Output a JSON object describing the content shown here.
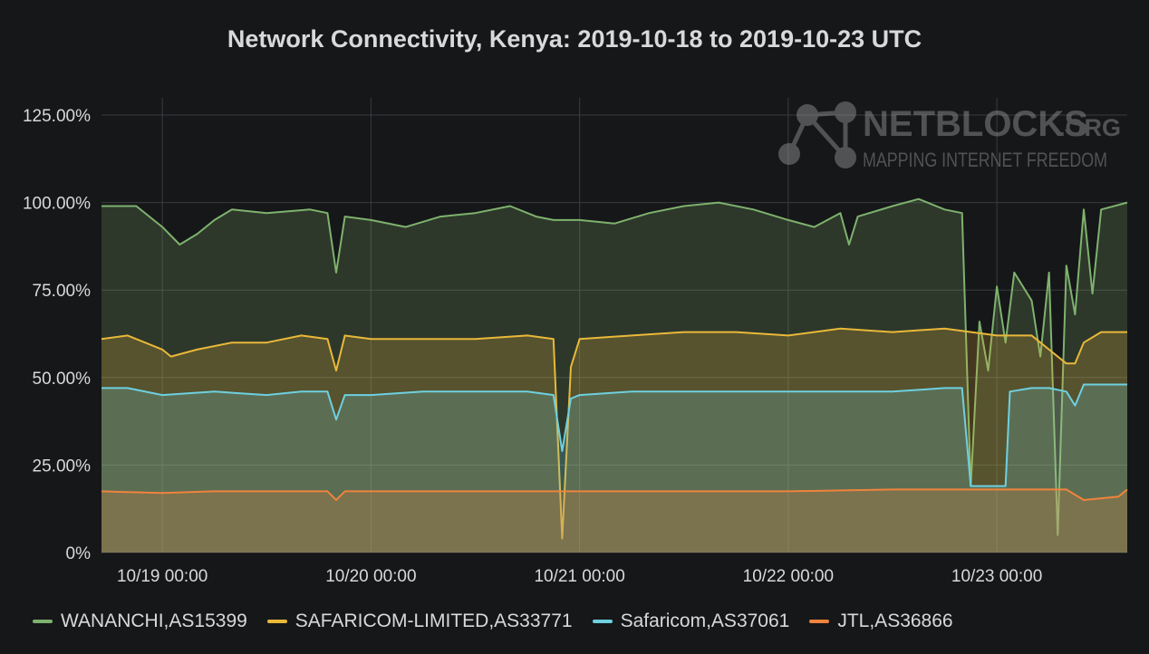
{
  "chart_data": {
    "type": "area",
    "title": "Network Connectivity, Kenya: 2019-10-18 to 2019-10-23 UTC",
    "ylim": [
      0,
      125
    ],
    "yticks": [
      "125.00%",
      "100.00%",
      "75.00%",
      "50.00%",
      "25.00%",
      "0%"
    ],
    "ytick_values": [
      125,
      100,
      75,
      50,
      25,
      0
    ],
    "xlim": [
      "2019-10-18 17:00",
      "2019-10-23 15:00"
    ],
    "xticks": [
      "10/19 00:00",
      "10/20 00:00",
      "10/21 00:00",
      "10/22 00:00",
      "10/23 00:00"
    ],
    "xtick_values": [
      "2019-10-19 00:00",
      "2019-10-20 00:00",
      "2019-10-21 00:00",
      "2019-10-22 00:00",
      "2019-10-23 00:00"
    ],
    "grid": true,
    "legend_position": "bottom",
    "watermark": {
      "brand": "NETBLOCKS",
      "suffix": ".ORG",
      "tagline": "MAPPING INTERNET FREEDOM"
    },
    "series": [
      {
        "name": "WANANCHI,AS15399",
        "color": "#7eb26d",
        "points": [
          [
            "2019-10-18 17:00",
            99
          ],
          [
            "2019-10-18 21:00",
            99
          ],
          [
            "2019-10-19 00:00",
            93
          ],
          [
            "2019-10-19 02:00",
            88
          ],
          [
            "2019-10-19 04:00",
            91
          ],
          [
            "2019-10-19 06:00",
            95
          ],
          [
            "2019-10-19 08:00",
            98
          ],
          [
            "2019-10-19 12:00",
            97
          ],
          [
            "2019-10-19 17:00",
            98
          ],
          [
            "2019-10-19 19:00",
            97
          ],
          [
            "2019-10-19 20:00",
            80
          ],
          [
            "2019-10-19 21:00",
            96
          ],
          [
            "2019-10-20 00:00",
            95
          ],
          [
            "2019-10-20 04:00",
            93
          ],
          [
            "2019-10-20 08:00",
            96
          ],
          [
            "2019-10-20 12:00",
            97
          ],
          [
            "2019-10-20 16:00",
            99
          ],
          [
            "2019-10-20 19:00",
            96
          ],
          [
            "2019-10-20 21:00",
            95
          ],
          [
            "2019-10-21 00:00",
            95
          ],
          [
            "2019-10-21 04:00",
            94
          ],
          [
            "2019-10-21 08:00",
            97
          ],
          [
            "2019-10-21 12:00",
            99
          ],
          [
            "2019-10-21 16:00",
            100
          ],
          [
            "2019-10-21 20:00",
            98
          ],
          [
            "2019-10-22 00:00",
            95
          ],
          [
            "2019-10-22 03:00",
            93
          ],
          [
            "2019-10-22 06:00",
            97
          ],
          [
            "2019-10-22 07:00",
            88
          ],
          [
            "2019-10-22 08:00",
            96
          ],
          [
            "2019-10-22 12:00",
            99
          ],
          [
            "2019-10-22 15:00",
            101
          ],
          [
            "2019-10-22 18:00",
            98
          ],
          [
            "2019-10-22 20:00",
            97
          ],
          [
            "2019-10-22 21:00",
            19
          ],
          [
            "2019-10-22 22:00",
            66
          ],
          [
            "2019-10-22 23:00",
            52
          ],
          [
            "2019-10-23 00:00",
            76
          ],
          [
            "2019-10-23 01:00",
            60
          ],
          [
            "2019-10-23 02:00",
            80
          ],
          [
            "2019-10-23 04:00",
            72
          ],
          [
            "2019-10-23 05:00",
            56
          ],
          [
            "2019-10-23 06:00",
            80
          ],
          [
            "2019-10-23 07:00",
            5
          ],
          [
            "2019-10-23 08:00",
            82
          ],
          [
            "2019-10-23 09:00",
            68
          ],
          [
            "2019-10-23 10:00",
            98
          ],
          [
            "2019-10-23 11:00",
            74
          ],
          [
            "2019-10-23 12:00",
            98
          ],
          [
            "2019-10-23 15:00",
            100
          ]
        ]
      },
      {
        "name": "SAFARICOM-LIMITED,AS33771",
        "color": "#eab839",
        "points": [
          [
            "2019-10-18 17:00",
            61
          ],
          [
            "2019-10-18 20:00",
            62
          ],
          [
            "2019-10-19 00:00",
            58
          ],
          [
            "2019-10-19 01:00",
            56
          ],
          [
            "2019-10-19 04:00",
            58
          ],
          [
            "2019-10-19 08:00",
            60
          ],
          [
            "2019-10-19 12:00",
            60
          ],
          [
            "2019-10-19 16:00",
            62
          ],
          [
            "2019-10-19 19:00",
            61
          ],
          [
            "2019-10-19 20:00",
            52
          ],
          [
            "2019-10-19 21:00",
            62
          ],
          [
            "2019-10-20 00:00",
            61
          ],
          [
            "2019-10-20 06:00",
            61
          ],
          [
            "2019-10-20 12:00",
            61
          ],
          [
            "2019-10-20 18:00",
            62
          ],
          [
            "2019-10-20 21:00",
            61
          ],
          [
            "2019-10-20 22:00",
            4
          ],
          [
            "2019-10-20 23:00",
            53
          ],
          [
            "2019-10-21 00:00",
            61
          ],
          [
            "2019-10-21 06:00",
            62
          ],
          [
            "2019-10-21 12:00",
            63
          ],
          [
            "2019-10-21 18:00",
            63
          ],
          [
            "2019-10-22 00:00",
            62
          ],
          [
            "2019-10-22 06:00",
            64
          ],
          [
            "2019-10-22 12:00",
            63
          ],
          [
            "2019-10-22 18:00",
            64
          ],
          [
            "2019-10-23 00:00",
            62
          ],
          [
            "2019-10-23 04:00",
            62
          ],
          [
            "2019-10-23 06:00",
            58
          ],
          [
            "2019-10-23 08:00",
            54
          ],
          [
            "2019-10-23 09:00",
            54
          ],
          [
            "2019-10-23 10:00",
            60
          ],
          [
            "2019-10-23 12:00",
            63
          ],
          [
            "2019-10-23 15:00",
            63
          ]
        ]
      },
      {
        "name": "Safaricom,AS37061",
        "color": "#6ed0e0",
        "points": [
          [
            "2019-10-18 17:00",
            47
          ],
          [
            "2019-10-18 20:00",
            47
          ],
          [
            "2019-10-19 00:00",
            45
          ],
          [
            "2019-10-19 06:00",
            46
          ],
          [
            "2019-10-19 12:00",
            45
          ],
          [
            "2019-10-19 16:00",
            46
          ],
          [
            "2019-10-19 19:00",
            46
          ],
          [
            "2019-10-19 20:00",
            38
          ],
          [
            "2019-10-19 21:00",
            45
          ],
          [
            "2019-10-20 00:00",
            45
          ],
          [
            "2019-10-20 06:00",
            46
          ],
          [
            "2019-10-20 12:00",
            46
          ],
          [
            "2019-10-20 18:00",
            46
          ],
          [
            "2019-10-20 21:00",
            45
          ],
          [
            "2019-10-20 22:00",
            29
          ],
          [
            "2019-10-20 23:00",
            44
          ],
          [
            "2019-10-21 00:00",
            45
          ],
          [
            "2019-10-21 06:00",
            46
          ],
          [
            "2019-10-21 12:00",
            46
          ],
          [
            "2019-10-21 18:00",
            46
          ],
          [
            "2019-10-22 00:00",
            46
          ],
          [
            "2019-10-22 06:00",
            46
          ],
          [
            "2019-10-22 12:00",
            46
          ],
          [
            "2019-10-22 18:00",
            47
          ],
          [
            "2019-10-22 20:00",
            47
          ],
          [
            "2019-10-22 21:00",
            19
          ],
          [
            "2019-10-23 00:00",
            19
          ],
          [
            "2019-10-23 01:00",
            19
          ],
          [
            "2019-10-23 01:30",
            46
          ],
          [
            "2019-10-23 04:00",
            47
          ],
          [
            "2019-10-23 06:00",
            47
          ],
          [
            "2019-10-23 08:00",
            46
          ],
          [
            "2019-10-23 09:00",
            42
          ],
          [
            "2019-10-23 10:00",
            48
          ],
          [
            "2019-10-23 15:00",
            48
          ]
        ]
      },
      {
        "name": "JTL,AS36866",
        "color": "#ef843c",
        "points": [
          [
            "2019-10-18 17:00",
            17.5
          ],
          [
            "2019-10-19 00:00",
            17
          ],
          [
            "2019-10-19 06:00",
            17.5
          ],
          [
            "2019-10-19 12:00",
            17.5
          ],
          [
            "2019-10-19 19:00",
            17.5
          ],
          [
            "2019-10-19 20:00",
            15
          ],
          [
            "2019-10-19 21:00",
            17.5
          ],
          [
            "2019-10-20 00:00",
            17.5
          ],
          [
            "2019-10-20 12:00",
            17.5
          ],
          [
            "2019-10-21 00:00",
            17.5
          ],
          [
            "2019-10-21 12:00",
            17.5
          ],
          [
            "2019-10-22 00:00",
            17.5
          ],
          [
            "2019-10-22 12:00",
            18
          ],
          [
            "2019-10-23 00:00",
            18
          ],
          [
            "2019-10-23 08:00",
            18
          ],
          [
            "2019-10-23 10:00",
            15
          ],
          [
            "2019-10-23 14:00",
            16
          ],
          [
            "2019-10-23 15:00",
            18
          ]
        ]
      }
    ]
  }
}
